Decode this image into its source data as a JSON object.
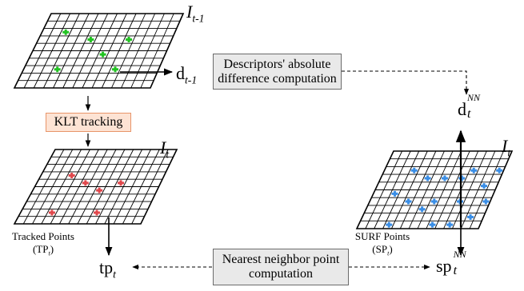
{
  "frames": {
    "prev": {
      "label": "I",
      "sub": "t-1"
    },
    "curr": {
      "label": "I",
      "sub": "t"
    },
    "surf": {
      "label": "I",
      "sub": "t"
    }
  },
  "boxes": {
    "descriptors": {
      "line1": "Descriptors' absolute",
      "line2": "difference computation"
    },
    "klt": {
      "text": "KLT tracking"
    },
    "nearest": {
      "line1": "Nearest neighbor point",
      "line2": "computation"
    }
  },
  "symbols": {
    "d_prev": {
      "base": "d",
      "sub": "t-1"
    },
    "d_nn": {
      "base": "d",
      "sub": "t",
      "sup": "NN"
    },
    "tp": {
      "base": "tp",
      "sub": "t"
    },
    "sp_nn": {
      "base": "sp",
      "sub": "t",
      "sup": "NN"
    }
  },
  "captions": {
    "tracked": {
      "line1": "Tracked Points",
      "line2_pre": "(TP",
      "line2_sub": "t",
      "line2_post": ")"
    },
    "surf": {
      "line1": "SURF Points",
      "line2_pre": "(SP",
      "line2_sub": "t",
      "line2_post": ")"
    }
  },
  "colors": {
    "green": "#22c322",
    "red": "#e0484c",
    "blue": "#3a8ee6",
    "box_gray": "#e9e9e9",
    "box_orange": "#fde3d4",
    "orange_border": "#e8956a"
  }
}
